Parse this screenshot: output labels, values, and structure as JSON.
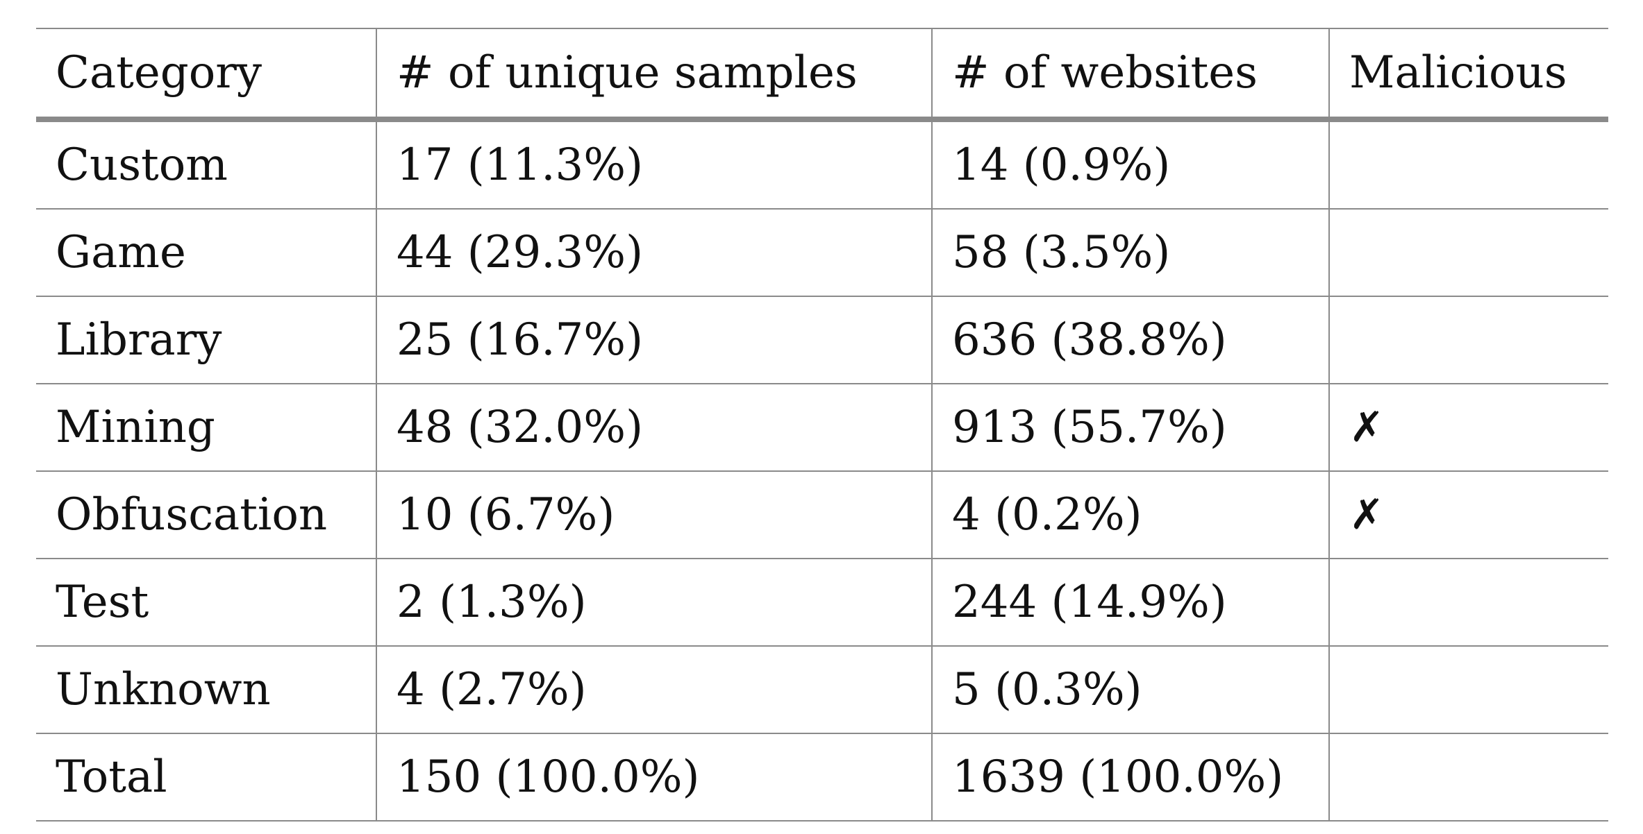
{
  "table": {
    "headers": {
      "category": "Category",
      "unique_samples": "# of unique samples",
      "websites": "# of websites",
      "malicious": "Malicious"
    },
    "rows": [
      {
        "category": "Custom",
        "unique_samples": "17 (11.3%)",
        "websites": "14 (0.9%)",
        "malicious": ""
      },
      {
        "category": "Game",
        "unique_samples": "44 (29.3%)",
        "websites": "58 (3.5%)",
        "malicious": ""
      },
      {
        "category": "Library",
        "unique_samples": "25 (16.7%)",
        "websites": "636 (38.8%)",
        "malicious": ""
      },
      {
        "category": "Mining",
        "unique_samples": "48 (32.0%)",
        "websites": "913 (55.7%)",
        "malicious": "✗"
      },
      {
        "category": "Obfuscation",
        "unique_samples": "10 (6.7%)",
        "websites": "4 (0.2%)",
        "malicious": "✗"
      },
      {
        "category": "Test",
        "unique_samples": "2 (1.3%)",
        "websites": "244 (14.9%)",
        "malicious": ""
      },
      {
        "category": "Unknown",
        "unique_samples": "4 (2.7%)",
        "websites": "5 (0.3%)",
        "malicious": ""
      },
      {
        "category": "Total",
        "unique_samples": "150 (100.0%)",
        "websites": "1639 (100.0%)",
        "malicious": ""
      }
    ]
  }
}
